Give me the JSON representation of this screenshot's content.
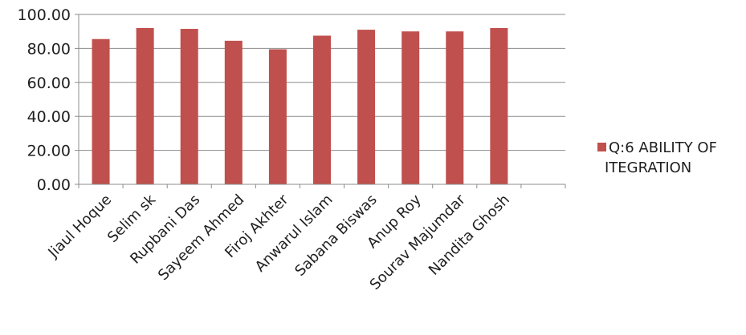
{
  "chart_data": {
    "type": "bar",
    "categories": [
      "Jiaul Hoque",
      "Selim sk",
      "Rupbani Das",
      "Sayeem Ahmed",
      "Firoj Akhter",
      "Anwarul Islam",
      "Sabana Biswas",
      "Anup Roy",
      "Sourav Majumdar",
      "Nandita Ghosh",
      ""
    ],
    "series": [
      {
        "name": "Q:6 ABILITY OF ITEGRATION",
        "values": [
          85.5,
          92.0,
          91.5,
          84.5,
          79.5,
          87.5,
          91.0,
          90.0,
          90.0,
          92.0,
          null
        ],
        "color": "#c0504d"
      }
    ],
    "ylim": [
      0,
      100
    ],
    "yticks": [
      "0.00",
      "20.00",
      "40.00",
      "60.00",
      "80.00",
      "100.00"
    ],
    "grid": true,
    "legend_position": "right",
    "legend_lines": [
      "Q:6 ABILITY OF",
      "ITEGRATION"
    ],
    "title": "",
    "xlabel": "",
    "ylabel": ""
  }
}
